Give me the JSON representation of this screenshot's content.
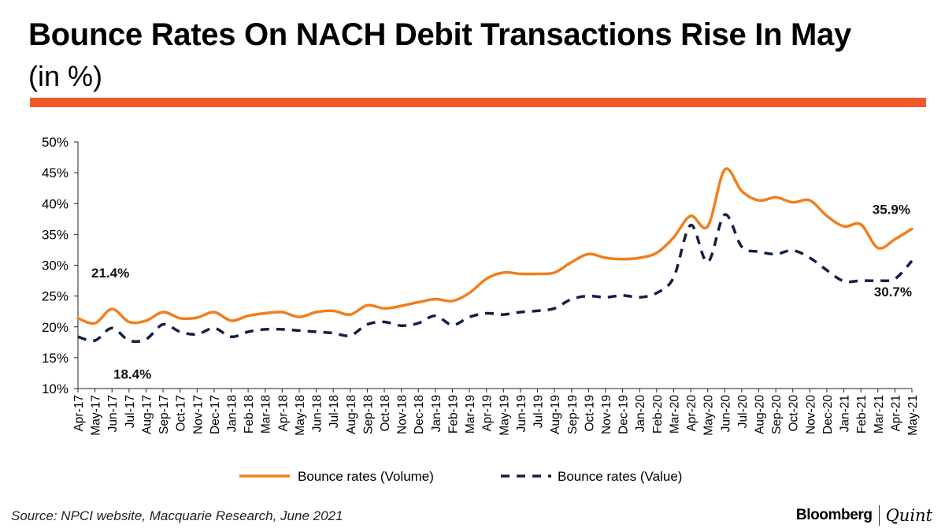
{
  "header": {
    "title": "Bounce Rates On NACH Debit Transactions Rise In May",
    "subtitle": "(in %)"
  },
  "colors": {
    "accent_rule": "#F05A28",
    "volume_line": "#F07F1E",
    "value_line": "#102045"
  },
  "footer": {
    "source": "Source: NPCI website, Macquarie Research, June 2021",
    "brand_primary": "Bloomberg",
    "brand_secondary": "Quint"
  },
  "chart_data": {
    "type": "line",
    "title": "Bounce Rates On NACH Debit Transactions Rise In May",
    "subtitle": "(in %)",
    "xlabel": "",
    "ylabel": "",
    "ylim": [
      10,
      50
    ],
    "yticks": [
      "10%",
      "15%",
      "20%",
      "25%",
      "30%",
      "35%",
      "40%",
      "45%",
      "50%"
    ],
    "grid": false,
    "legend_position": "bottom",
    "categories": [
      "Apr-17",
      "May-17",
      "Jun-17",
      "Jul-17",
      "Aug-17",
      "Sep-17",
      "Oct-17",
      "Nov-17",
      "Dec-17",
      "Jan-18",
      "Feb-18",
      "Mar-18",
      "Apr-18",
      "May-18",
      "Jun-18",
      "Jul-18",
      "Aug-18",
      "Sep-18",
      "Oct-18",
      "Nov-18",
      "Dec-18",
      "Jan-19",
      "Feb-19",
      "Mar-19",
      "Apr-19",
      "May-19",
      "Jun-19",
      "Jul-19",
      "Aug-19",
      "Sep-19",
      "Oct-19",
      "Nov-19",
      "Dec-19",
      "Jan-20",
      "Feb-20",
      "Mar-20",
      "Apr-20",
      "May-20",
      "Jun-20",
      "Jul-20",
      "Aug-20",
      "Sep-20",
      "Oct-20",
      "Nov-20",
      "Dec-20",
      "Jan-21",
      "Feb-21",
      "Mar-21",
      "Apr-21",
      "May-21"
    ],
    "series": [
      {
        "name": "Bounce rates (Volume)",
        "style": "solid",
        "values": [
          21.4,
          20.6,
          22.9,
          20.8,
          21.0,
          22.4,
          21.4,
          21.5,
          22.4,
          21.0,
          21.8,
          22.2,
          22.4,
          21.6,
          22.4,
          22.6,
          22.0,
          23.5,
          23.0,
          23.4,
          24.0,
          24.5,
          24.2,
          25.5,
          27.8,
          28.8,
          28.6,
          28.6,
          28.8,
          30.5,
          31.8,
          31.2,
          31.0,
          31.2,
          32.0,
          34.5,
          38.0,
          36.3,
          45.5,
          42.0,
          40.5,
          41.0,
          40.2,
          40.5,
          38.0,
          36.3,
          36.6,
          32.8,
          34.2,
          35.9
        ],
        "annotations": [
          {
            "index": 0,
            "label": "21.4%"
          },
          {
            "index": 49,
            "label": "35.9%"
          }
        ]
      },
      {
        "name": "Bounce rates (Value)",
        "style": "dashed",
        "values": [
          18.4,
          17.8,
          19.8,
          17.8,
          18.0,
          20.4,
          19.2,
          18.8,
          19.8,
          18.4,
          19.2,
          19.6,
          19.6,
          19.4,
          19.2,
          19.0,
          18.6,
          20.4,
          20.8,
          20.2,
          20.6,
          21.8,
          20.3,
          21.6,
          22.2,
          22.0,
          22.4,
          22.6,
          23.0,
          24.5,
          25.0,
          24.8,
          25.1,
          24.8,
          25.5,
          28.0,
          36.5,
          30.5,
          38.2,
          33.0,
          32.2,
          31.8,
          32.4,
          31.2,
          29.2,
          27.4,
          27.5,
          27.5,
          27.8,
          30.7
        ],
        "annotations": [
          {
            "index": 0,
            "label": "18.4%"
          },
          {
            "index": 49,
            "label": "30.7%"
          }
        ]
      }
    ]
  }
}
